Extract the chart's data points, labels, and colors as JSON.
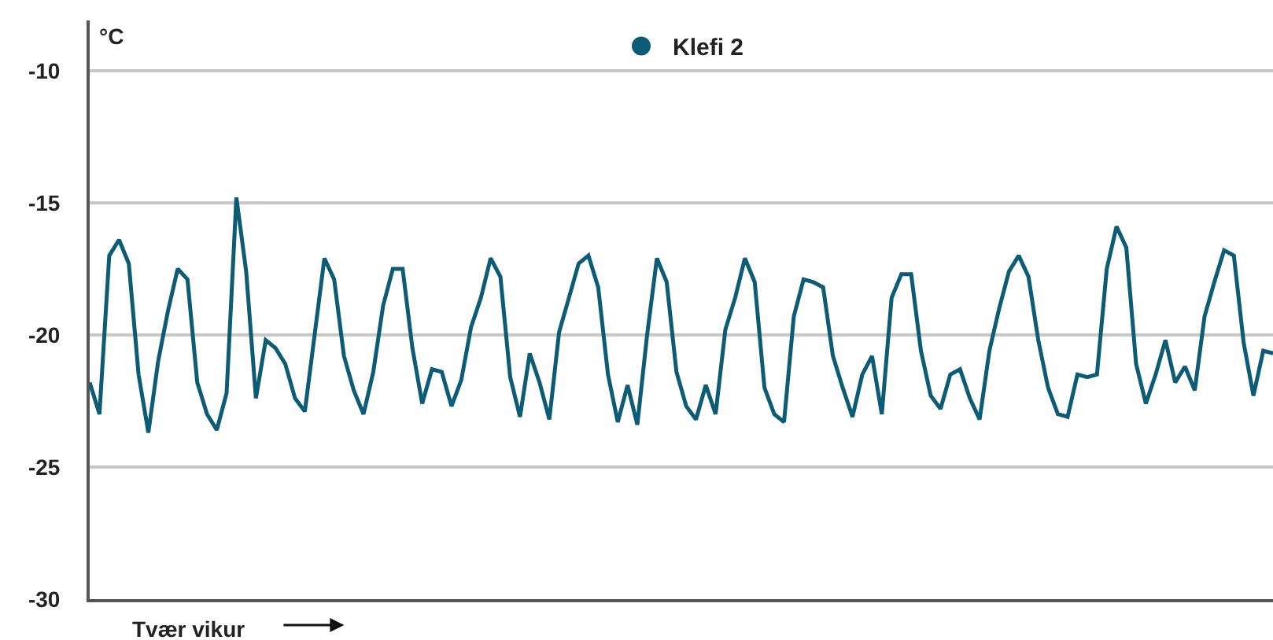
{
  "chart_data": {
    "type": "line",
    "ylabel": "°C",
    "xlabel": "Tvær vikur",
    "categories": [
      null,
      null,
      null,
      null,
      null,
      null,
      null,
      null,
      null,
      null,
      null,
      null,
      null,
      null,
      null,
      null,
      null,
      null,
      null,
      null,
      null,
      null,
      null,
      null,
      null,
      null,
      null,
      null,
      null,
      null,
      null,
      null,
      null,
      null,
      null,
      null,
      null,
      null,
      null,
      null,
      null,
      null,
      null,
      null,
      null,
      null,
      null,
      null,
      null,
      null,
      null,
      null,
      null,
      null,
      null,
      null,
      null,
      null,
      null,
      null,
      null,
      null,
      null,
      null,
      null,
      null,
      null,
      null,
      null,
      null,
      null,
      null,
      null,
      null,
      null,
      null,
      null,
      null,
      null,
      null,
      null,
      null,
      null,
      null,
      null,
      null,
      null,
      null,
      null,
      null,
      null,
      null,
      null,
      null,
      null,
      null,
      null,
      null,
      null,
      null,
      null,
      null,
      null,
      null,
      null,
      null,
      null,
      null,
      null,
      null,
      null,
      null,
      null,
      null,
      null,
      null,
      null,
      null,
      null,
      null,
      null,
      null
    ],
    "series": [
      {
        "name": "Klefi 2",
        "color": "#0d5c75",
        "values": [
          -21.8,
          -23.0,
          -17.0,
          -16.4,
          -17.3,
          -21.5,
          -23.7,
          -21.0,
          -19.1,
          -17.5,
          -17.9,
          -21.8,
          -23.0,
          -23.6,
          -22.2,
          -14.8,
          -17.6,
          -22.4,
          -20.2,
          -20.5,
          -21.1,
          -22.4,
          -22.9,
          -20.0,
          -17.1,
          -17.9,
          -20.8,
          -22.1,
          -23.0,
          -21.4,
          -18.9,
          -17.5,
          -17.5,
          -20.5,
          -22.6,
          -21.3,
          -21.4,
          -22.7,
          -21.7,
          -19.7,
          -18.6,
          -17.1,
          -17.8,
          -21.6,
          -23.1,
          -20.7,
          -21.8,
          -23.2,
          -19.9,
          -18.6,
          -17.3,
          -17.0,
          -18.2,
          -21.5,
          -23.3,
          -21.9,
          -23.4,
          -20.0,
          -17.1,
          -18.0,
          -21.4,
          -22.7,
          -23.2,
          -21.9,
          -23.0,
          -19.8,
          -18.6,
          -17.1,
          -18.0,
          -22.0,
          -23.0,
          -23.3,
          -19.3,
          -17.9,
          -18.0,
          -18.2,
          -20.8,
          -22.0,
          -23.1,
          -21.5,
          -20.8,
          -23.0,
          -18.6,
          -17.7,
          -17.7,
          -20.6,
          -22.3,
          -22.8,
          -21.5,
          -21.3,
          -22.4,
          -23.2,
          -20.6,
          -19.0,
          -17.6,
          -17.0,
          -17.8,
          -20.2,
          -22.0,
          -23.0,
          -23.1,
          -21.5,
          -21.6,
          -21.5,
          -17.5,
          -15.9,
          -16.7,
          -21.1,
          -22.6,
          -21.5,
          -20.2,
          -21.8,
          -21.2,
          -22.1,
          -19.3,
          -18.0,
          -16.8,
          -17.0,
          -20.3,
          -22.3,
          -20.6,
          -20.7
        ]
      }
    ],
    "ylim": [
      -30,
      -8.1
    ],
    "yticks": [
      -30,
      -25,
      -20,
      -15,
      -10
    ],
    "grid": "y",
    "legend": "top",
    "marker": "none",
    "line_style": "solid",
    "tick_labels": "y"
  }
}
